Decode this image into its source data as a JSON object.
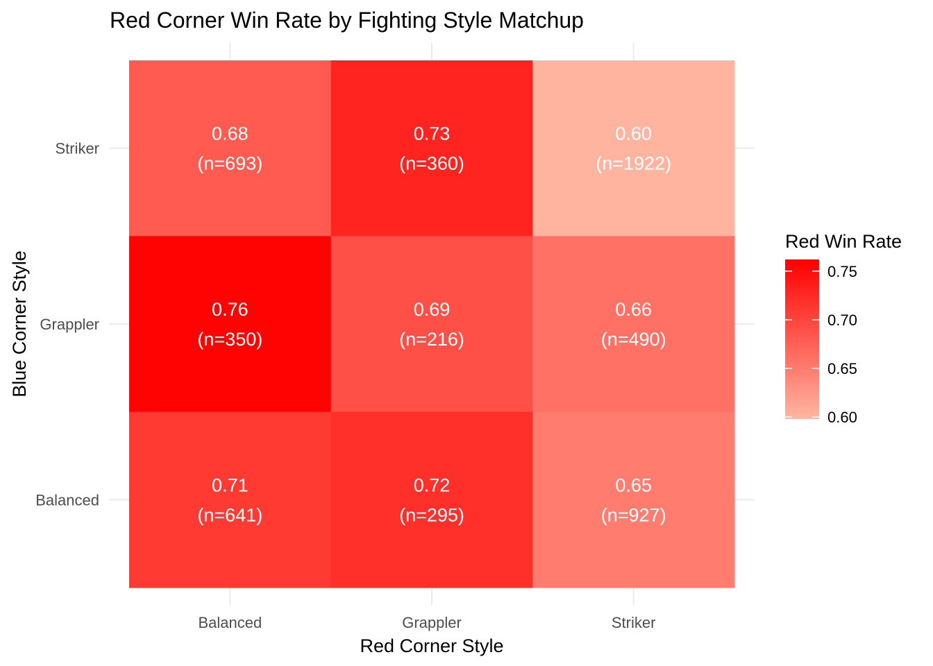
{
  "chart_data": {
    "type": "heatmap",
    "title": "Red Corner Win Rate by Fighting Style Matchup",
    "xlabel": "Red Corner Style",
    "ylabel": "Blue Corner Style",
    "x_categories": [
      "Balanced",
      "Grappler",
      "Striker"
    ],
    "y_categories": [
      "Balanced",
      "Grappler",
      "Striker"
    ],
    "cells": [
      {
        "x": "Balanced",
        "y": "Striker",
        "value": 0.68,
        "value_label": "0.68",
        "n_label": "(n=693)"
      },
      {
        "x": "Grappler",
        "y": "Striker",
        "value": 0.73,
        "value_label": "0.73",
        "n_label": "(n=360)"
      },
      {
        "x": "Striker",
        "y": "Striker",
        "value": 0.6,
        "value_label": "0.60",
        "n_label": "(n=1922)"
      },
      {
        "x": "Balanced",
        "y": "Grappler",
        "value": 0.76,
        "value_label": "0.76",
        "n_label": "(n=350)"
      },
      {
        "x": "Grappler",
        "y": "Grappler",
        "value": 0.69,
        "value_label": "0.69",
        "n_label": "(n=216)"
      },
      {
        "x": "Striker",
        "y": "Grappler",
        "value": 0.66,
        "value_label": "0.66",
        "n_label": "(n=490)"
      },
      {
        "x": "Balanced",
        "y": "Balanced",
        "value": 0.71,
        "value_label": "0.71",
        "n_label": "(n=641)"
      },
      {
        "x": "Grappler",
        "y": "Balanced",
        "value": 0.72,
        "value_label": "0.72",
        "n_label": "(n=295)"
      },
      {
        "x": "Striker",
        "y": "Balanced",
        "value": 0.65,
        "value_label": "0.65",
        "n_label": "(n=927)"
      }
    ],
    "legend": {
      "title": "Red Win Rate",
      "ticks": [
        0.6,
        0.65,
        0.7,
        0.75
      ],
      "tick_labels": [
        "0.60",
        "0.65",
        "0.70",
        "0.75"
      ],
      "range": [
        0.598,
        0.762
      ],
      "placement": "right"
    },
    "color_low": "#ffb6a2",
    "color_high": "#ff0000",
    "grid": true
  }
}
